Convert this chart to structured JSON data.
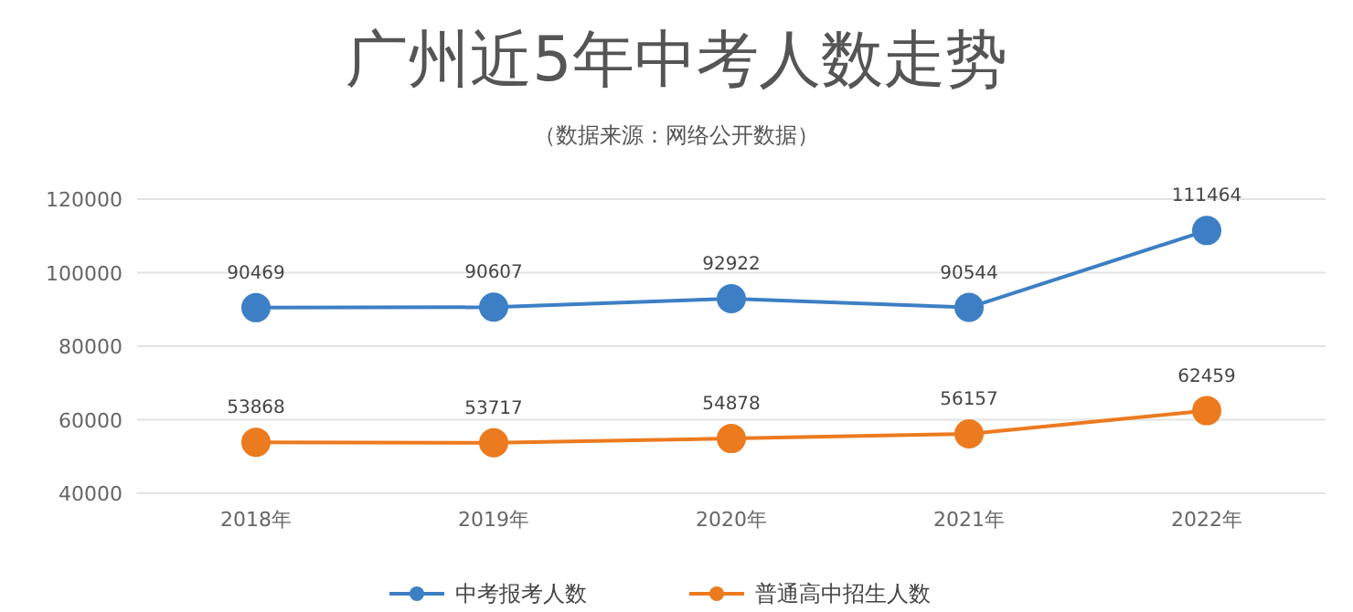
{
  "chart_data": {
    "type": "line",
    "title": "广州近5年中考人数走势",
    "subtitle": "（数据来源：网络公开数据）",
    "categories": [
      "2018年",
      "2019年",
      "2020年",
      "2021年",
      "2022年"
    ],
    "series": [
      {
        "name": "中考报考人数",
        "color": "#3d7fc4",
        "values": [
          90469,
          90607,
          92922,
          90544,
          111464
        ]
      },
      {
        "name": "普通高中招生人数",
        "color": "#ec7a1e",
        "values": [
          53868,
          53717,
          54878,
          56157,
          62459
        ]
      }
    ],
    "ylim": [
      40000,
      120000
    ],
    "yticks": [
      40000,
      60000,
      80000,
      100000,
      120000
    ],
    "grid": "y",
    "legend": "bottom",
    "marker": "circle",
    "data_labels": true
  }
}
